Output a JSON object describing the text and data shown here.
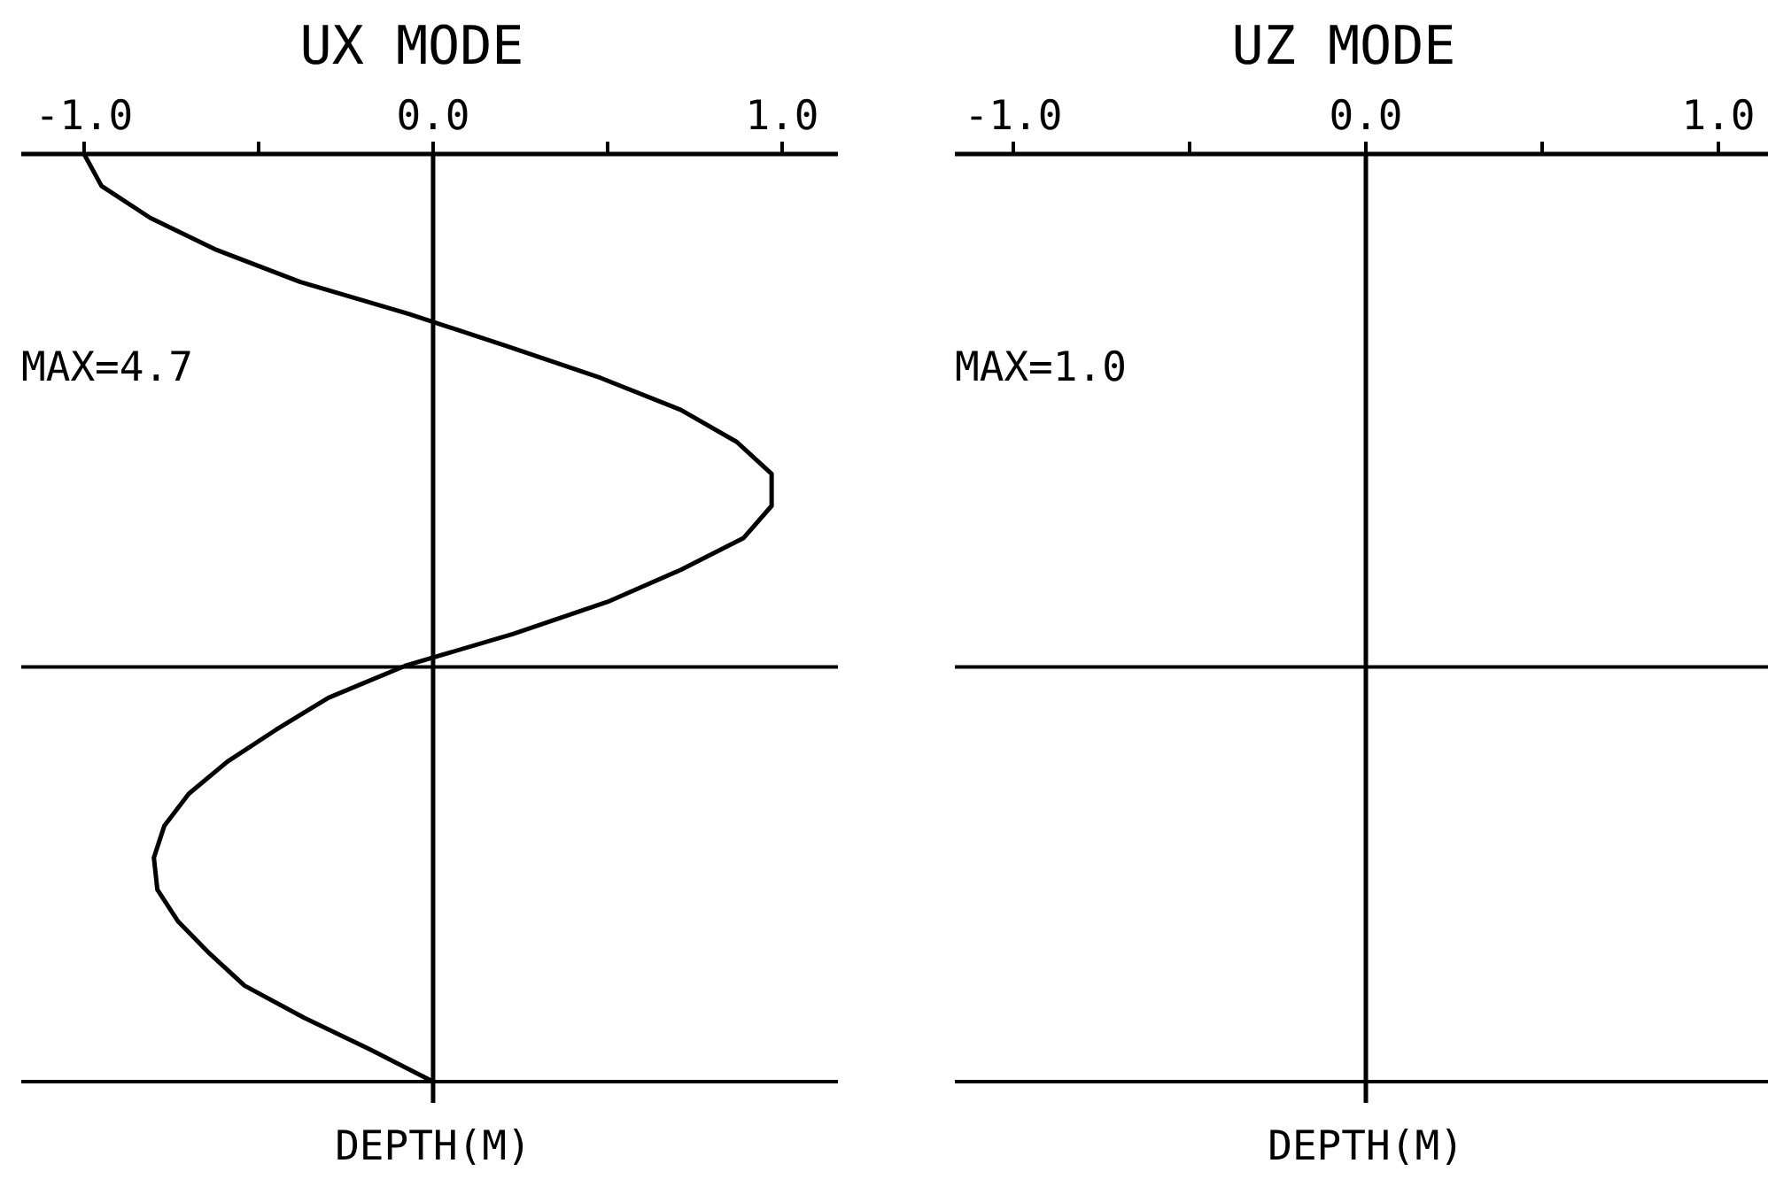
{
  "chart_data": [
    {
      "type": "line",
      "orientation": "horizontal",
      "title": "UX MODE",
      "xlabel": "DEPTH(M)",
      "xlim": [
        -1.18,
        1.16
      ],
      "xticks": [
        {
          "value": -1,
          "label": "-1.0"
        },
        {
          "value": -0.5,
          "label": null
        },
        {
          "value": 0,
          "label": "0.0"
        },
        {
          "value": 0.5,
          "label": null
        },
        {
          "value": 1,
          "label": "1.0"
        }
      ],
      "tick_labels": "x",
      "annotations": [
        "MAX=4.7"
      ],
      "categories": [
        null,
        null,
        null,
        null,
        null,
        null,
        null,
        null,
        null,
        null,
        null,
        null,
        null,
        null,
        null,
        null,
        null,
        null,
        null,
        null,
        null,
        null,
        null,
        null,
        null,
        null,
        null,
        null,
        null,
        null
      ],
      "series": [
        {
          "color": "#000000",
          "values": [
            -1.0,
            -0.95,
            -0.81,
            -0.62,
            -0.38,
            -0.07,
            0.21,
            0.48,
            0.71,
            0.87,
            0.97,
            0.97,
            0.89,
            0.71,
            0.5,
            0.23,
            -0.08,
            -0.3,
            -0.45,
            -0.59,
            -0.7,
            -0.77,
            -0.8,
            -0.79,
            -0.73,
            -0.64,
            -0.54,
            -0.37,
            -0.18,
            0
          ]
        }
      ]
    },
    {
      "type": "other",
      "title": "UZ MODE",
      "xlabel": "DEPTH(M)",
      "annotations": [
        "MAX=1.0"
      ],
      "categories": [
        "-1.0",
        "0.0",
        "1.0"
      ]
    }
  ]
}
